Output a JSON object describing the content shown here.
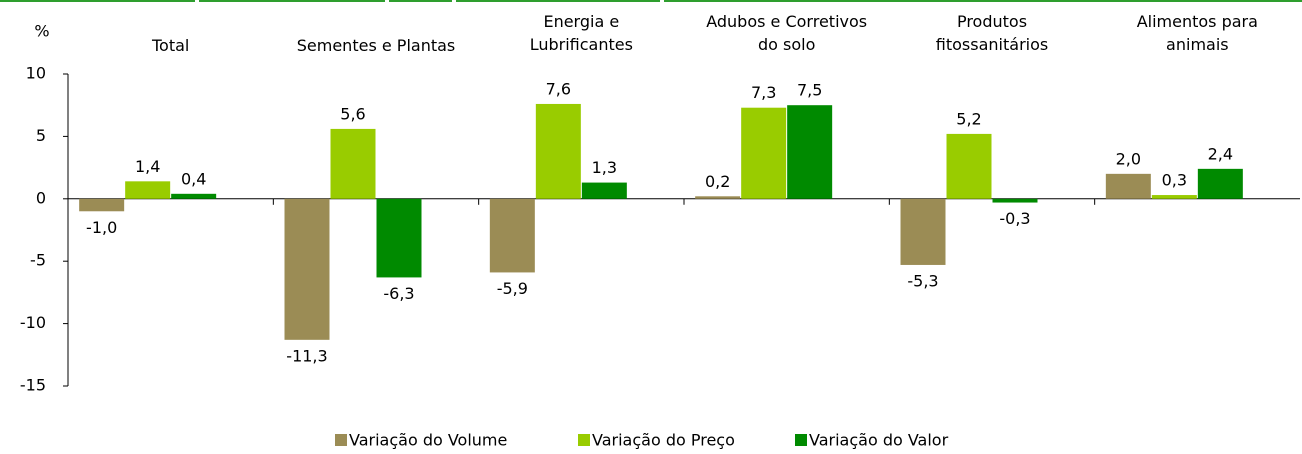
{
  "chart_data": {
    "type": "bar",
    "y_label": "%",
    "categories": [
      "Total",
      "Sementes e Plantas",
      "Energia e\nLubrificantes",
      "Adubos e Corretivos\ndo solo",
      "Produtos\nfitossanitários",
      "Alimentos para\nanimais"
    ],
    "series": [
      {
        "name": "Variação do Volume",
        "color": "#9b8c55",
        "values": [
          -1.0,
          -11.3,
          -5.9,
          0.2,
          -5.3,
          2.0
        ],
        "value_labels": [
          "-1,0",
          "-11,3",
          "-5,9",
          "0,2",
          "-5,3",
          "2,0"
        ]
      },
      {
        "name": "Variação do Preço",
        "color": "#99cc00",
        "values": [
          1.4,
          5.6,
          7.6,
          7.3,
          5.2,
          0.3
        ],
        "value_labels": [
          "1,4",
          "5,6",
          "7,6",
          "7,3",
          "5,2",
          "0,3"
        ]
      },
      {
        "name": "Variação do Valor",
        "color": "#008a00",
        "values": [
          0.4,
          -6.3,
          1.3,
          7.5,
          -0.3,
          2.4
        ],
        "value_labels": [
          "0,4",
          "-6,3",
          "1,3",
          "7,5",
          "-0,3",
          "2,4"
        ]
      }
    ],
    "ylim": [
      -15,
      10
    ],
    "yticks": [
      -15,
      -10,
      -5,
      0,
      5,
      10
    ],
    "legend": "bottom"
  }
}
